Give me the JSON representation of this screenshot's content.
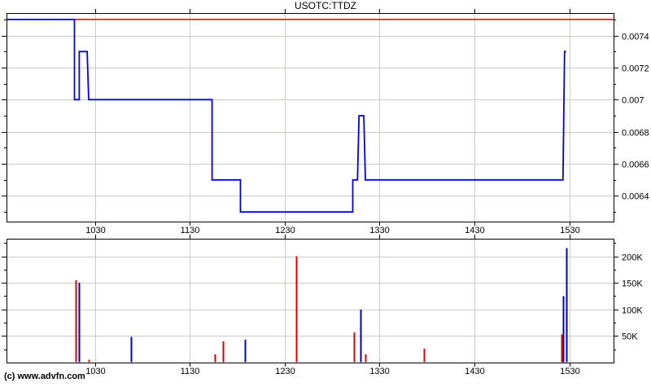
{
  "title": "USOTC:TTDZ",
  "copyright": "(c) www.advfn.com",
  "colors": {
    "background": "#ffffff",
    "axis": "#000000",
    "grid": "#c6cec6",
    "price_line": "#0000ee",
    "reference_line": "#dd0000",
    "volume_up": "#0000cc",
    "volume_down": "#dd0000"
  },
  "chart_data": [
    {
      "type": "line",
      "name": "price-chart",
      "title": "USOTC:TTDZ",
      "grid": true,
      "y_axis_position": "right",
      "xlim": [
        934,
        1558
      ],
      "ylim": [
        0.00624,
        0.00754
      ],
      "x_ticks": [
        1030,
        1130,
        1230,
        1330,
        1430,
        1530
      ],
      "x_tick_labels": [
        "1030",
        "1130",
        "1230",
        "1330",
        "1430",
        "1530"
      ],
      "y_major_ticks": [
        0.0074,
        0.0072,
        0.007,
        0.0068,
        0.0066,
        0.0064
      ],
      "y_tick_labels": [
        "0.0074",
        "0.0072",
        "0.007",
        "0.0068",
        "0.0066",
        "0.0064"
      ],
      "y_minor_ticks": [
        0.0075,
        0.0073,
        0.0071,
        0.0069,
        0.0067,
        0.0065,
        0.0063
      ],
      "reference_line": {
        "value": 0.0075,
        "color": "#dd0000"
      },
      "series": [
        {
          "name": "price",
          "color": "#0000ee",
          "points": [
            [
              934,
              0.0075
            ],
            [
              1017,
              0.0075
            ],
            [
              1017,
              0.007
            ],
            [
              1020,
              0.007
            ],
            [
              1020,
              0.0073
            ],
            [
              1025,
              0.0073
            ],
            [
              1026,
              0.007
            ],
            [
              1144,
              0.007
            ],
            [
              1144,
              0.0065
            ],
            [
              1202,
              0.0065
            ],
            [
              1202,
              0.0063
            ],
            [
              1313,
              0.0063
            ],
            [
              1313,
              0.0065
            ],
            [
              1316,
              0.0065
            ],
            [
              1317,
              0.0069
            ],
            [
              1320,
              0.0069
            ],
            [
              1321,
              0.0065
            ],
            [
              1526,
              0.0065
            ],
            [
              1527,
              0.0073
            ],
            [
              1528,
              0.0073
            ]
          ]
        }
      ]
    },
    {
      "type": "bar",
      "name": "volume-chart",
      "grid": true,
      "y_axis_position": "right",
      "xlim": [
        934,
        1558
      ],
      "ylim": [
        0,
        233000
      ],
      "x_ticks": [
        1030,
        1130,
        1230,
        1330,
        1430,
        1530
      ],
      "x_tick_labels": [
        "1030",
        "1130",
        "1230",
        "1330",
        "1430",
        "1530"
      ],
      "y_major_ticks": [
        200000,
        150000,
        100000,
        50000
      ],
      "y_tick_labels": [
        "200K",
        "150K",
        "100K",
        "50K"
      ],
      "y_minor_ticks": [
        225000,
        175000,
        125000,
        75000,
        25000
      ],
      "bars": [
        {
          "t": 1018,
          "v": 155000,
          "color": "#dd0000"
        },
        {
          "t": 1020,
          "v": 150000,
          "color": "#0000cc"
        },
        {
          "t": 1026,
          "v": 5000,
          "color": "#dd0000"
        },
        {
          "t": 1053,
          "v": 48000,
          "color": "#0000cc"
        },
        {
          "t": 1146,
          "v": 15000,
          "color": "#dd0000"
        },
        {
          "t": 1151,
          "v": 40000,
          "color": "#dd0000"
        },
        {
          "t": 1205,
          "v": 43000,
          "color": "#0000cc"
        },
        {
          "t": 1237,
          "v": 200000,
          "color": "#dd0000"
        },
        {
          "t": 1314,
          "v": 57000,
          "color": "#dd0000"
        },
        {
          "t": 1318,
          "v": 100000,
          "color": "#0000cc"
        },
        {
          "t": 1321,
          "v": 15000,
          "color": "#dd0000"
        },
        {
          "t": 1358,
          "v": 26000,
          "color": "#dd0000"
        },
        {
          "t": 1525,
          "v": 53000,
          "color": "#dd0000"
        },
        {
          "t": 1526,
          "v": 125000,
          "color": "#0000cc"
        },
        {
          "t": 1528,
          "v": 215000,
          "color": "#0000cc"
        }
      ]
    }
  ]
}
